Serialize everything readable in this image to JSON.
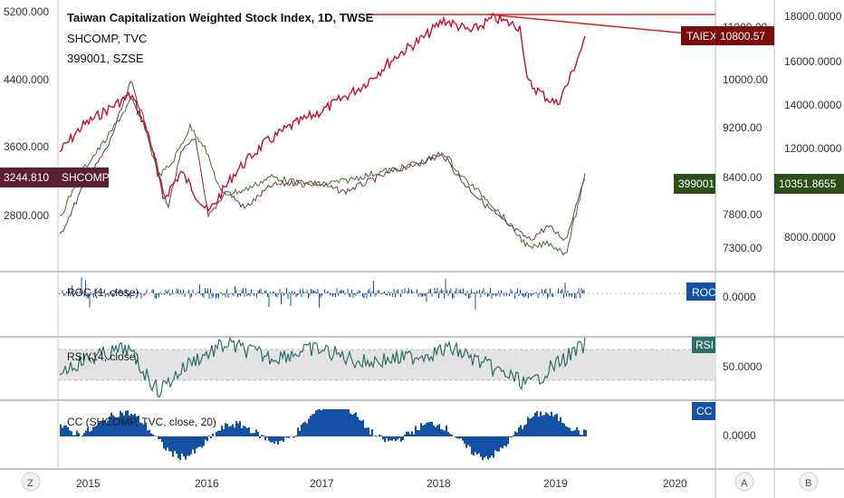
{
  "header": {
    "title": "Taiwan Capitalization Weighted Stock Index, 1D, TWSE",
    "line2": "SHCOMP, TVC",
    "line3": "399001, SZSE"
  },
  "colors": {
    "taiex": "#c8102e",
    "taiex_tag": "#7b0b0b",
    "shcomp": "#6d3b4a",
    "shcomp_tag": "#5c2035",
    "szse": "#4a6b3a",
    "szse_tag": "#2f4f1a",
    "roc": "#1450a3",
    "rsi": "#2e6f66",
    "cc": "#1450a3",
    "resistance": "#e02020"
  },
  "tags": {
    "taiex_name": "TAIEX",
    "taiex_value": "10800.57",
    "shcomp_value": "3244.810",
    "shcomp_name": "SHCOMP",
    "szse_name": "399001",
    "szse_value": "10351.8655",
    "roc": "ROC",
    "rsi": "RSI",
    "cc": "CC"
  },
  "left_axis": [
    "5200.000",
    "4400.000",
    "3600.000",
    "2800.000"
  ],
  "mid_axis": [
    "11000.00",
    "10000.00",
    "9200.00",
    "8400.00",
    "7800.00",
    "7300.00"
  ],
  "right_axis": [
    "18000.0000",
    "16000.0000",
    "14000.0000",
    "12000.0000",
    "8000.0000"
  ],
  "panes": {
    "roc_label": "ROC (1, close)",
    "roc_axis": "0.0000",
    "rsi_label": "RSI (14, close)",
    "rsi_axis": "50.0000",
    "cc_label": "CC (SHCOMP, TVC, close, 20)",
    "cc_axis": "0.0000"
  },
  "x_axis": [
    "2015",
    "2016",
    "2017",
    "2018",
    "2019",
    "2020"
  ],
  "corner_buttons": {
    "left": "Z",
    "mid": "A",
    "right": "B"
  }
}
